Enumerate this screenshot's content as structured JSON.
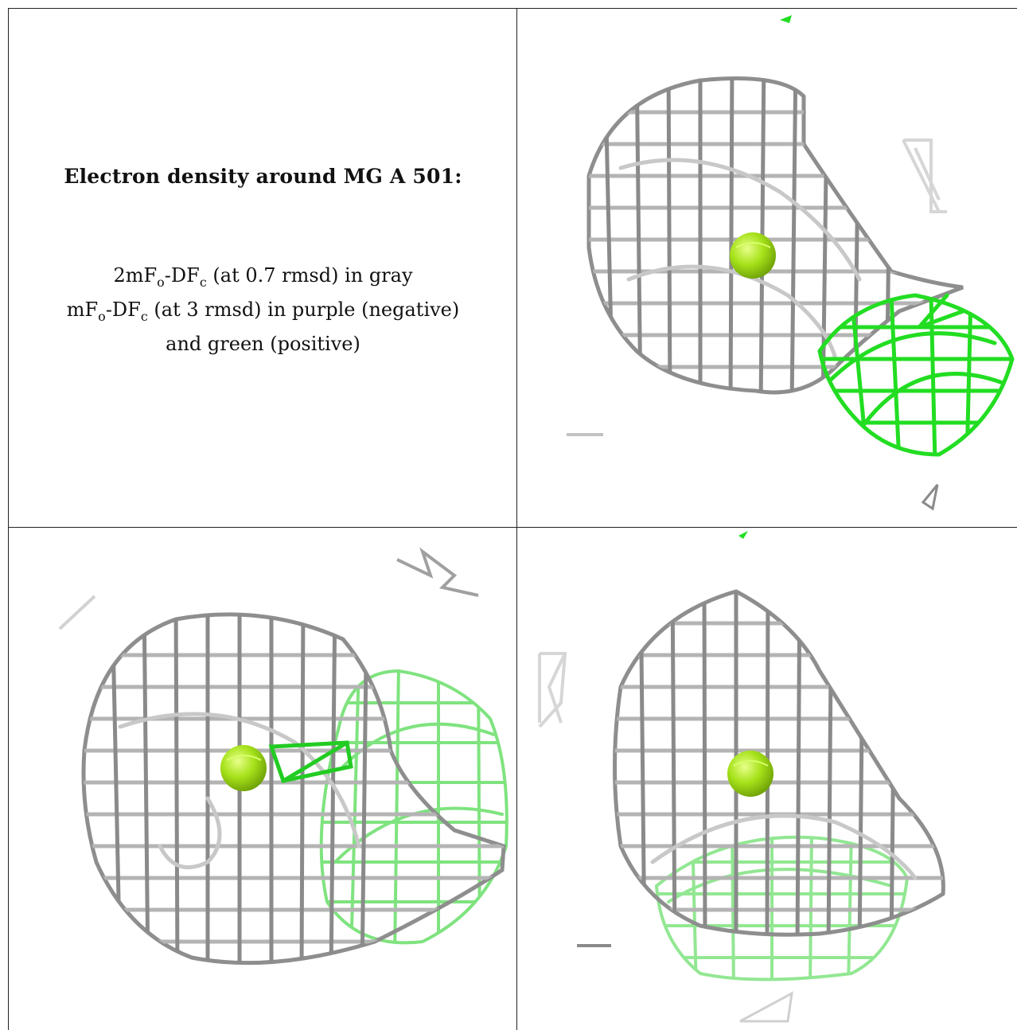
{
  "caption": {
    "title": "Electron density around MG A 501:",
    "line1": {
      "p1": "2mF",
      "s1": "o",
      "p2": "-DF",
      "s2": "c",
      "p3": " (at 0.7 rmsd) in gray"
    },
    "line2": {
      "p1": "mF",
      "s1": "o",
      "p2": "-DF",
      "s2": "c",
      "p3": " (at 3 rmsd) in purple (negative)"
    },
    "line3": "and green (positive)"
  },
  "colors": {
    "mesh_gray": "#a6a6a6",
    "mesh_gray_dark": "#7a7a7a",
    "mesh_green": "#22dd22",
    "mesh_green_light": "#7fe37f",
    "ion_sphere": "#a6e21a",
    "border": "#222222"
  },
  "panels": [
    {
      "id": "view-top-right",
      "icon": "electron-density-mesh-icon"
    },
    {
      "id": "view-bottom-left",
      "icon": "electron-density-mesh-icon"
    },
    {
      "id": "view-bottom-right",
      "icon": "electron-density-mesh-icon"
    }
  ]
}
